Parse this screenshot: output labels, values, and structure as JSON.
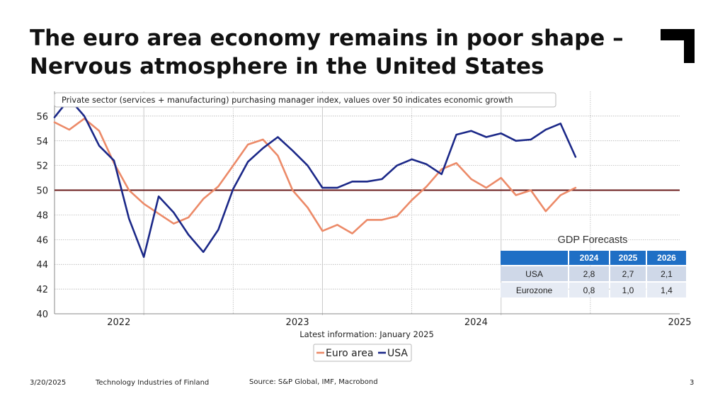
{
  "title_line1": "The euro area economy remains in poor shape –",
  "title_line2": "Nervous atmosphere in the United States",
  "chart_data": {
    "type": "line",
    "title": "Private sector (services + manufacturing) purchasing manager index, values over 50 indicates economic growth",
    "xlabel": "Latest information: January 2025",
    "ylabel": "",
    "ylim": [
      40,
      58
    ],
    "yticks": [
      40,
      42,
      44,
      46,
      48,
      50,
      52,
      54,
      56
    ],
    "ytick_labels": [
      "40",
      "42",
      "44",
      "46",
      "48",
      "50",
      "52",
      "54",
      "56"
    ],
    "xticks": [
      2022,
      2023,
      2024,
      2025
    ],
    "xtick_labels": [
      "2022",
      "2023",
      "2024",
      "2025"
    ],
    "xlim": [
      2021.5,
      2025.0
    ],
    "reference_line": 50,
    "legend_placement": "bottom-center",
    "series": [
      {
        "name": "Euro area",
        "color": "#ec8a68",
        "x": [
          2021.5,
          2021.583,
          2021.667,
          2021.75,
          2021.833,
          2021.917,
          2022.0,
          2022.083,
          2022.167,
          2022.25,
          2022.333,
          2022.417,
          2022.5,
          2022.583,
          2022.667,
          2022.75,
          2022.833,
          2022.917,
          2023.0,
          2023.083,
          2023.167,
          2023.25,
          2023.333,
          2023.417,
          2023.5,
          2023.583,
          2023.667,
          2023.75,
          2023.833,
          2023.917,
          2024.0,
          2024.083,
          2024.167,
          2024.25,
          2024.333,
          2024.417,
          2024.5,
          2024.583,
          2024.667,
          2024.75,
          2024.833,
          2024.917,
          2025.0
        ],
        "values": [
          55.5,
          54.9,
          55.8,
          54.8,
          52.2,
          50.0,
          48.9,
          48.1,
          47.3,
          47.8,
          49.3,
          50.3,
          52.0,
          53.7,
          54.1,
          52.8,
          50.0,
          48.6,
          46.7,
          47.2,
          46.5,
          47.6,
          47.6,
          47.9,
          49.2,
          50.3,
          51.7,
          52.2,
          50.9,
          50.2,
          51.0,
          49.6,
          50.0,
          48.3,
          49.6,
          50.2,
          null,
          null,
          null,
          null,
          null,
          null,
          null
        ]
      },
      {
        "name": "USA",
        "color": "#1b2888",
        "x": [
          2021.5,
          2021.583,
          2021.667,
          2021.75,
          2021.833,
          2021.917,
          2022.0,
          2022.083,
          2022.167,
          2022.25,
          2022.333,
          2022.417,
          2022.5,
          2022.583,
          2022.667,
          2022.75,
          2022.833,
          2022.917,
          2023.0,
          2023.083,
          2023.167,
          2023.25,
          2023.333,
          2023.417,
          2023.5,
          2023.583,
          2023.667,
          2023.75,
          2023.833,
          2023.917,
          2024.0,
          2024.083,
          2024.167,
          2024.25,
          2024.333,
          2024.417,
          2024.5,
          2024.583,
          2024.667,
          2024.75,
          2024.833,
          2024.917,
          2025.0
        ],
        "values": [
          55.9,
          57.4,
          56.0,
          53.6,
          52.4,
          47.7,
          44.6,
          49.5,
          48.2,
          46.4,
          45.0,
          46.8,
          50.1,
          52.3,
          53.4,
          54.3,
          53.2,
          52.0,
          50.2,
          50.2,
          50.7,
          50.7,
          50.9,
          52.0,
          52.5,
          52.1,
          51.3,
          54.5,
          54.8,
          54.3,
          54.6,
          54.0,
          54.1,
          54.9,
          55.4,
          52.7,
          null,
          null,
          null,
          null,
          null,
          null,
          null
        ]
      }
    ]
  },
  "gdp": {
    "title": "GDP Forecasts",
    "headers": [
      "",
      "2024",
      "2025",
      "2026"
    ],
    "rows": [
      [
        "USA",
        "2,8",
        "2,7",
        "2,1"
      ],
      [
        "Eurozone",
        "0,8",
        "1,0",
        "1,4"
      ]
    ]
  },
  "footer": {
    "date": "3/20/2025",
    "org": "Technology Industries of Finland",
    "source": "Source: S&P Global, IMF, Macrobond",
    "page": "3"
  }
}
